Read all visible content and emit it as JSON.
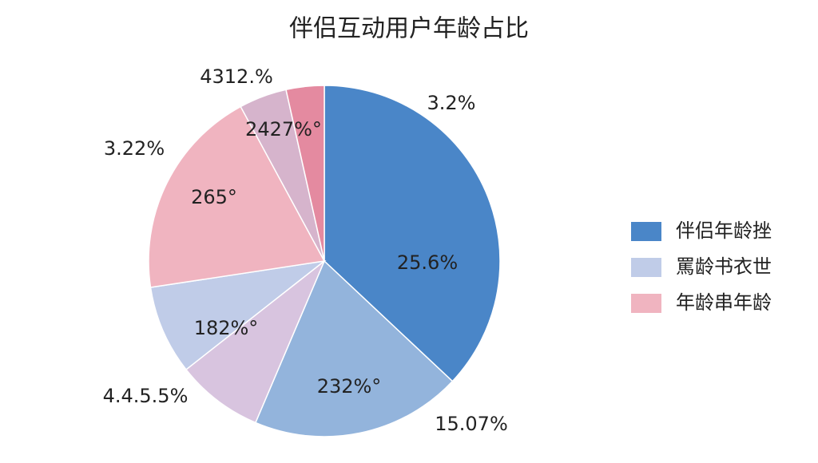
{
  "chart_data": {
    "type": "pie",
    "title": "伴侣互动用户年龄占比",
    "categories": [
      null,
      null,
      null,
      null,
      null,
      null,
      null
    ],
    "values": [
      37,
      19.4,
      8,
      8.2,
      19.5,
      4.4,
      3.5
    ],
    "colors": [
      "#4a86c8",
      "#93b4dc",
      "#d8c4df",
      "#c0cce8",
      "#f0b4c0",
      "#d6b4cc",
      "#e48aa0"
    ],
    "annotations": [
      "25.6%",
      "232%°",
      "182%°",
      "265°",
      "2427%°",
      "3.2%",
      "15.07%",
      "4.4.5.5%",
      "3.22%",
      "4312.%"
    ],
    "legend": [
      {
        "name": "伴侣年龄挫",
        "color": "#4a86c8"
      },
      {
        "name": "罵龄书衣世",
        "color": "#c0cce8"
      },
      {
        "name": "年龄串年龄",
        "color": "#f0b4c0"
      }
    ]
  }
}
